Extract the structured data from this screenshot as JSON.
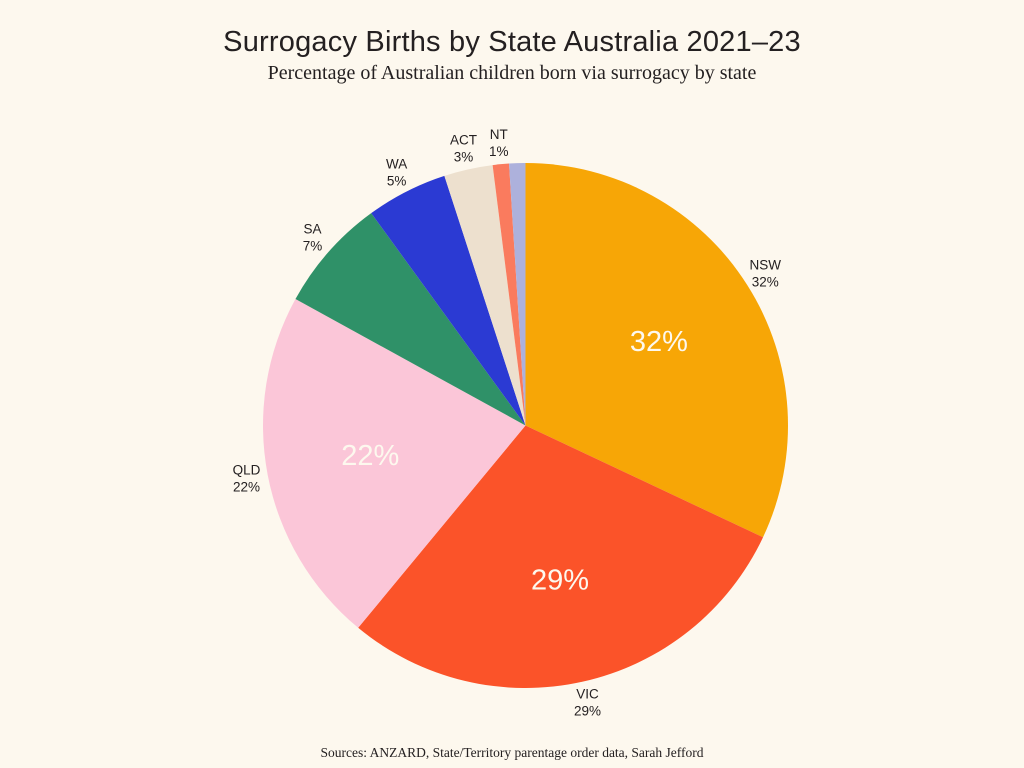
{
  "page": {
    "background": "#FDF8EE",
    "text_color": "#242021"
  },
  "header": {
    "title": "Surrogacy Births by State Australia 2021–23",
    "subtitle": "Percentage of Australian children born via surrogacy by state"
  },
  "footer": {
    "source": "Sources: ANZARD, State/Territory parentage order data, Sarah Jefford"
  },
  "chart_data": {
    "type": "pie",
    "title": "Surrogacy Births by State Australia 2021–23",
    "subtitle": "Percentage of Australian children born via surrogacy by state",
    "unit": "percent",
    "start_angle_deg": 0,
    "direction": "clockwise",
    "grid": false,
    "legend_position": "none",
    "outer_label_color": "#242021",
    "inner_label_color": "#FDF8EE",
    "slices": [
      {
        "label": "NSW",
        "value": 32,
        "color": "#F7A606",
        "outer_label_lines": [
          "NSW",
          "32%"
        ],
        "inner_label": "32%"
      },
      {
        "label": "VIC",
        "value": 29,
        "color": "#FB5329",
        "outer_label_lines": [
          "VIC",
          "29%"
        ],
        "inner_label": "29%"
      },
      {
        "label": "QLD",
        "value": 22,
        "color": "#FBC6D8",
        "outer_label_lines": [
          "QLD",
          "22%"
        ],
        "inner_label": "22%"
      },
      {
        "label": "SA",
        "value": 7,
        "color": "#2F9168",
        "outer_label_lines": [
          "SA",
          "7%"
        ],
        "inner_label": null
      },
      {
        "label": "WA",
        "value": 5,
        "color": "#2B3AD3",
        "outer_label_lines": [
          "WA",
          "5%"
        ],
        "inner_label": null
      },
      {
        "label": "ACT",
        "value": 3,
        "color": "#EDE0CE",
        "outer_label_lines": [
          "ACT",
          "3%"
        ],
        "inner_label": null
      },
      {
        "label": "NT",
        "value": 1,
        "color": "#FA7B5E",
        "outer_label_lines": [
          "NT",
          "1%"
        ],
        "inner_label": null
      },
      {
        "label": "",
        "value": 1,
        "color": "#ADB1DC",
        "outer_label_lines": null,
        "inner_label": null
      }
    ]
  }
}
